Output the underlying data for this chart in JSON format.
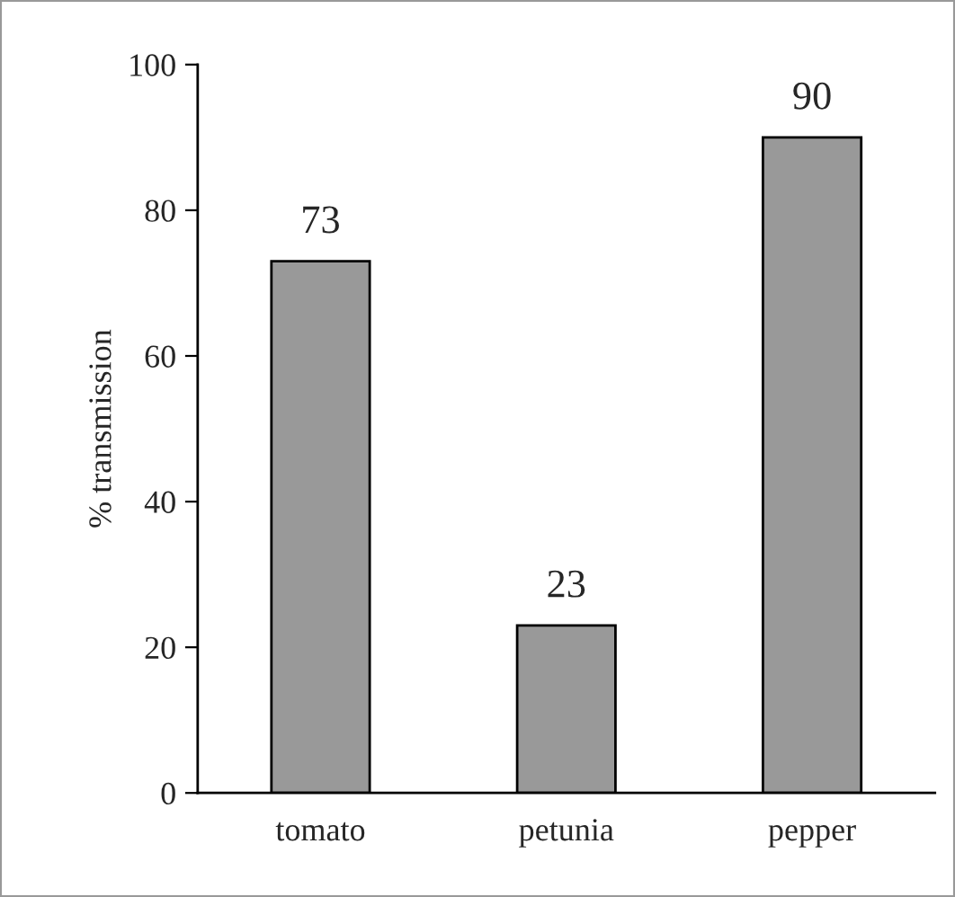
{
  "chart_data": {
    "type": "bar",
    "ylabel": "% transmission",
    "categories": [
      "tomato",
      "petunia",
      "pepper"
    ],
    "values": [
      73,
      23,
      90
    ],
    "color": "#999999",
    "ylim": [
      0,
      100
    ],
    "yticks": [
      0,
      20,
      40,
      60,
      80,
      100
    ],
    "data_labels": true,
    "grid": false
  }
}
